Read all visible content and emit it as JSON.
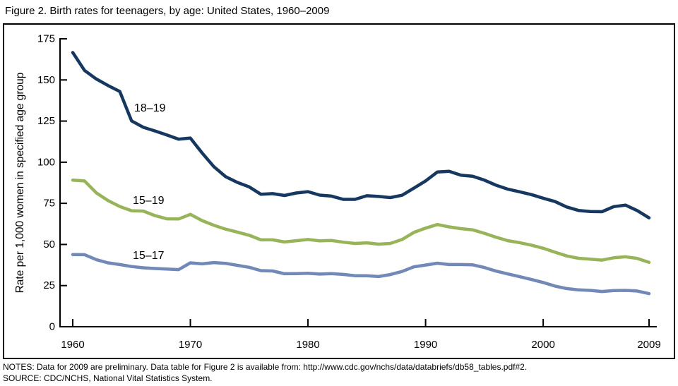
{
  "title": "Figure 2. Birth rates for teenagers, by age: United States, 1960–2009",
  "notes": {
    "line1": "NOTES: Data for 2009 are preliminary. Data table for Figure 2 is available from: http://www.cdc.gov/nchs/data/databriefs/db58_tables.pdf#2.",
    "line2": "SOURCE: CDC/NCHS, National Vital Statistics System."
  },
  "chart_data": {
    "type": "line",
    "title": "Figure 2. Birth rates for teenagers, by age: United States, 1960–2009",
    "xlabel": "",
    "ylabel": "Rate per 1,000 women in specified age group",
    "xlim": [
      1960,
      2009
    ],
    "ylim": [
      0,
      175
    ],
    "yticks": [
      0,
      25,
      50,
      75,
      100,
      125,
      150,
      175
    ],
    "ytick_labels": [
      "0",
      "25",
      "50",
      "75",
      "100",
      "125",
      "150",
      "175"
    ],
    "xticks": [
      1960,
      1970,
      1980,
      1990,
      2000,
      2009
    ],
    "xtick_labels": [
      "1960",
      "1970",
      "1980",
      "1990",
      "2000",
      "2009"
    ],
    "grid": false,
    "legend_position": "inline labels next to lines",
    "x": [
      1960,
      1961,
      1962,
      1963,
      1964,
      1965,
      1966,
      1967,
      1968,
      1969,
      1970,
      1971,
      1972,
      1973,
      1974,
      1975,
      1976,
      1977,
      1978,
      1979,
      1980,
      1981,
      1982,
      1983,
      1984,
      1985,
      1986,
      1987,
      1988,
      1989,
      1990,
      1991,
      1992,
      1993,
      1994,
      1995,
      1996,
      1997,
      1998,
      1999,
      2000,
      2001,
      2002,
      2003,
      2004,
      2005,
      2006,
      2007,
      2008,
      2009
    ],
    "series": [
      {
        "name": "18–19",
        "color": "#16375F",
        "values": [
          166.7,
          155.8,
          150.6,
          146.6,
          143.0,
          125.1,
          121.2,
          119.0,
          116.6,
          114.0,
          114.7,
          105.6,
          97.3,
          91.2,
          87.7,
          85.0,
          80.5,
          80.9,
          79.8,
          81.3,
          82.1,
          80.0,
          79.4,
          77.4,
          77.4,
          79.6,
          79.2,
          78.5,
          79.9,
          84.2,
          88.6,
          94.0,
          94.5,
          92.1,
          91.5,
          89.1,
          86.0,
          83.6,
          82.0,
          80.3,
          78.1,
          76.1,
          72.8,
          70.7,
          70.0,
          69.9,
          73.0,
          73.9,
          70.6,
          66.2
        ]
      },
      {
        "name": "15–19",
        "color": "#97B45A",
        "values": [
          89.1,
          88.6,
          81.4,
          76.7,
          73.1,
          70.5,
          70.3,
          67.5,
          65.6,
          65.5,
          68.3,
          64.5,
          61.7,
          59.3,
          57.5,
          55.6,
          52.8,
          52.8,
          51.5,
          52.3,
          53.0,
          52.2,
          52.4,
          51.4,
          50.6,
          51.0,
          50.2,
          50.6,
          53.0,
          57.3,
          59.9,
          62.1,
          60.7,
          59.6,
          58.9,
          56.8,
          54.4,
          52.3,
          51.1,
          49.6,
          47.7,
          45.3,
          43.0,
          41.6,
          41.1,
          40.5,
          41.9,
          42.5,
          41.5,
          39.1
        ]
      },
      {
        "name": "15–17",
        "color": "#7289B7",
        "values": [
          43.9,
          43.8,
          40.8,
          38.8,
          37.8,
          36.6,
          35.8,
          35.4,
          35.1,
          34.7,
          38.8,
          38.2,
          39.0,
          38.5,
          37.3,
          36.1,
          34.1,
          33.9,
          32.2,
          32.3,
          32.5,
          32.0,
          32.3,
          31.8,
          31.0,
          31.0,
          30.5,
          31.7,
          33.6,
          36.4,
          37.5,
          38.6,
          37.8,
          37.8,
          37.6,
          36.0,
          33.8,
          32.1,
          30.4,
          28.7,
          26.9,
          24.7,
          23.2,
          22.4,
          22.1,
          21.4,
          22.0,
          22.1,
          21.7,
          20.1
        ]
      }
    ]
  },
  "frame_color": "#000000",
  "axis_color": "#000000"
}
